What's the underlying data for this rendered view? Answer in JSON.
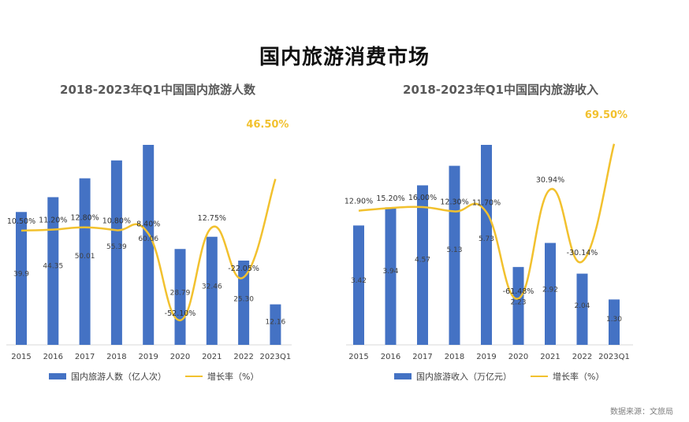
{
  "title": "国内旅游消费市场",
  "source": "数据来源：文旅局",
  "colors": {
    "bar": "#4472C4",
    "line": "#F2C12E",
    "highlight": "#F2C12E"
  },
  "chart_data": [
    {
      "type": "bar",
      "title": "2018-2023年Q1中国国内旅游人数",
      "categories": [
        "2015",
        "2016",
        "2017",
        "2018",
        "2019",
        "2020",
        "2021",
        "2022",
        "2023Q1"
      ],
      "bar_labels": [
        "39.9",
        "44.35",
        "50.01",
        "55.39",
        "60.06",
        "28.79",
        "32.46",
        "25.30",
        "12.16"
      ],
      "series": [
        {
          "name": "国内旅游人数（亿人次）",
          "type": "bar",
          "values": [
            39.9,
            44.35,
            50.01,
            55.39,
            60.06,
            28.79,
            32.46,
            25.3,
            12.16
          ]
        },
        {
          "name": "增长率（%）",
          "type": "line",
          "values": [
            10.5,
            11.2,
            12.8,
            10.8,
            8.4,
            -52.1,
            12.75,
            -22.05,
            46.5
          ]
        }
      ],
      "line_labels": [
        "10.50%",
        "11.20%",
        "12.80%",
        "10.80%",
        "8.40%",
        "-52.10%",
        "12.75%",
        "-22.05%",
        "46.50%"
      ],
      "legend": {
        "bar": "国内旅游人数（亿人次）",
        "line": "增长率（%）",
        "position": "bottom"
      }
    },
    {
      "type": "bar",
      "title": "2018-2023年Q1中国国内旅游收入",
      "categories": [
        "2015",
        "2016",
        "2017",
        "2018",
        "2019",
        "2020",
        "2021",
        "2022",
        "2023Q1"
      ],
      "bar_labels": [
        "3.42",
        "3.94",
        "4.57",
        "5.13",
        "5.73",
        "2.23",
        "2.92",
        "2.04",
        "1.30"
      ],
      "series": [
        {
          "name": "国内旅游收入（万亿元）",
          "type": "bar",
          "values": [
            3.42,
            3.94,
            4.57,
            5.13,
            5.73,
            2.23,
            2.92,
            2.04,
            1.3
          ]
        },
        {
          "name": "增长率（%）",
          "type": "line",
          "values": [
            12.9,
            15.2,
            16.0,
            12.3,
            11.7,
            -61.48,
            30.94,
            -30.14,
            69.5
          ]
        }
      ],
      "line_labels": [
        "12.90%",
        "15.20%",
        "16.00%",
        "12.30%",
        "11.70%",
        "-61.48%",
        "30.94%",
        "-30.14%",
        "69.50%"
      ],
      "legend": {
        "bar": "国内旅游收入（万亿元）",
        "line": "增长率（%）",
        "position": "bottom"
      }
    }
  ]
}
